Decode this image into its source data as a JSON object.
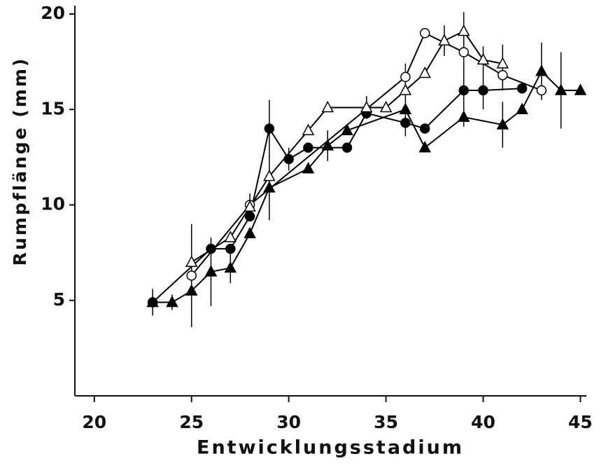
{
  "chart_data": {
    "type": "line",
    "xlabel": "Entwicklungsstadium",
    "ylabel": "Rumpflänge (mm)",
    "xlim": [
      19,
      45.2
    ],
    "ylim": [
      0,
      20
    ],
    "xticks": [
      20,
      25,
      30,
      35,
      40,
      45
    ],
    "yticks": [
      5,
      10,
      15,
      20
    ],
    "series": [
      {
        "color": "#000000",
        "marker": "circle",
        "filled": true,
        "x": [
          23,
          26,
          27,
          28,
          29,
          30,
          31,
          33,
          34,
          36,
          37,
          39,
          40,
          42
        ],
        "values": [
          4.9,
          7.7,
          7.7,
          9.4,
          14.0,
          12.4,
          13.0,
          13.0,
          14.8,
          14.3,
          14.0,
          16.0,
          16.0,
          16.1
        ],
        "errors": [
          0.7,
          null,
          null,
          null,
          1.5,
          0.6,
          null,
          null,
          null,
          0.7,
          null,
          1.2,
          1.0,
          null
        ]
      },
      {
        "color": "#000000",
        "marker": "circle",
        "filled": false,
        "x": [
          25,
          28,
          36,
          37,
          39,
          41,
          43
        ],
        "values": [
          6.3,
          10.0,
          16.7,
          19.0,
          18.0,
          16.8,
          16.0
        ],
        "errors": [
          null,
          null,
          0.7,
          null,
          1.1,
          0.8,
          null
        ]
      },
      {
        "color": "#000000",
        "marker": "triangle",
        "filled": false,
        "x": [
          25,
          27,
          28,
          29,
          31,
          32,
          34,
          35,
          36,
          37,
          38,
          39,
          40,
          41
        ],
        "values": [
          7.0,
          8.3,
          9.9,
          11.5,
          13.9,
          15.1,
          15.1,
          15.1,
          16.0,
          16.9,
          18.6,
          19.1,
          17.6,
          17.4
        ],
        "errors": [
          2.0,
          null,
          0.7,
          null,
          null,
          null,
          0.6,
          null,
          0.8,
          null,
          0.8,
          1.0,
          0.7,
          1.0
        ]
      },
      {
        "color": "#000000",
        "marker": "triangle",
        "filled": true,
        "x": [
          23,
          24,
          25,
          26,
          27,
          28,
          29,
          31,
          32,
          33,
          36,
          37,
          39,
          41,
          42,
          43,
          44,
          45
        ],
        "values": [
          4.9,
          4.9,
          5.5,
          6.5,
          6.7,
          8.5,
          10.9,
          11.9,
          13.1,
          13.9,
          15.0,
          13.0,
          14.6,
          14.2,
          15.0,
          17.0,
          16.0,
          16.0
        ],
        "errors": [
          null,
          0.4,
          1.9,
          1.8,
          0.8,
          null,
          1.7,
          null,
          0.8,
          null,
          null,
          null,
          0.5,
          1.2,
          null,
          1.5,
          2.0,
          null
        ]
      }
    ]
  }
}
